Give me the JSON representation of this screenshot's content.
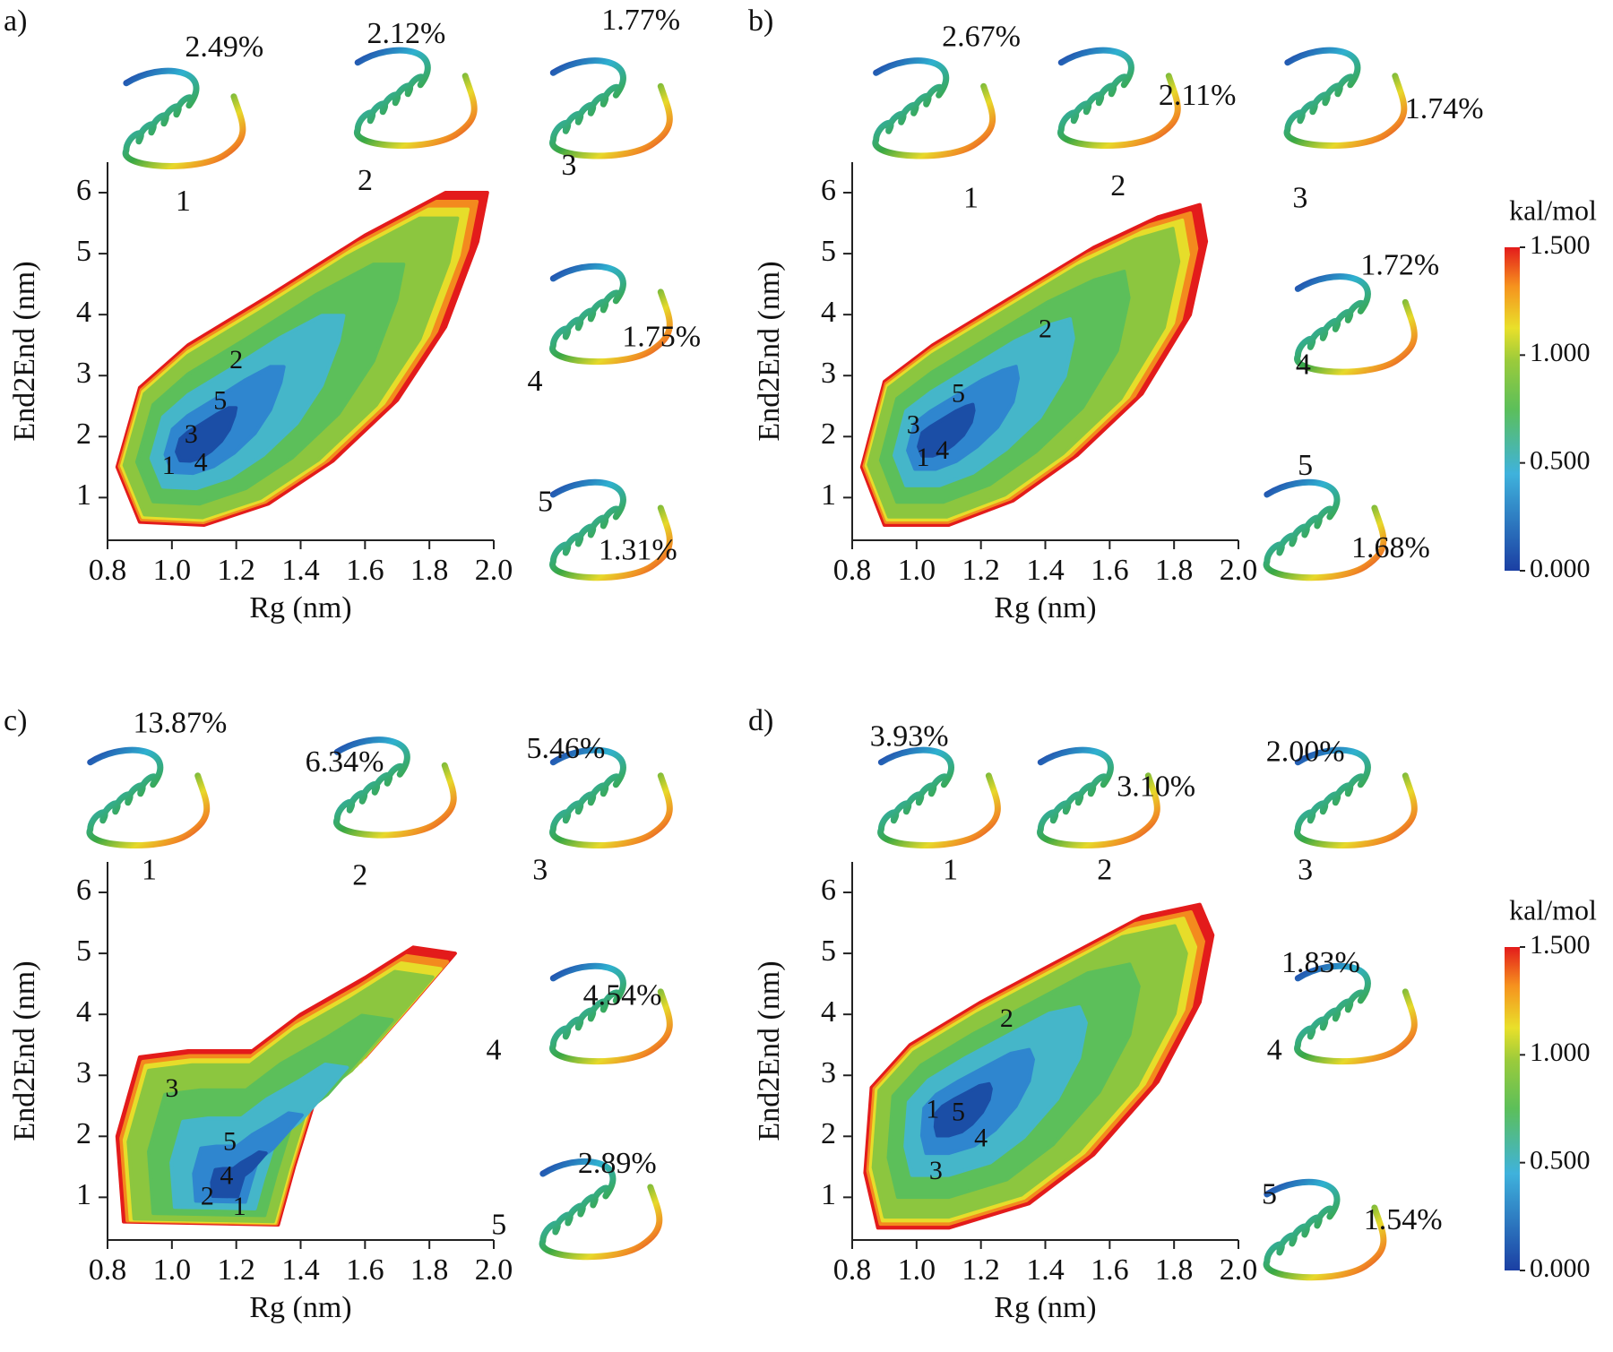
{
  "chart_data": [
    {
      "type": "contour",
      "panel_label": "a)",
      "xlabel": "Rg (nm)",
      "ylabel": "End2End (nm)",
      "xlim": [
        0.8,
        2.0
      ],
      "ylim": [
        0.3,
        6.5
      ],
      "xticks": [
        0.8,
        {
          "value": 1.0,
          "label": "1.0"
        },
        1.2,
        1.4,
        1.6,
        1.8,
        {
          "value": 2.0,
          "label": "2.0"
        }
      ],
      "yticks": [
        1,
        2,
        3,
        4,
        5,
        6
      ],
      "states": [
        {
          "label": "1",
          "x": 0.99,
          "y": 1.49
        },
        {
          "label": "2",
          "x": 1.2,
          "y": 3.22
        },
        {
          "label": "3",
          "x": 1.06,
          "y": 2.0
        },
        {
          "label": "4",
          "x": 1.09,
          "y": 1.54
        },
        {
          "label": "5",
          "x": 1.15,
          "y": 2.55
        }
      ],
      "structures": [
        {
          "label": "1",
          "percent": "2.49%"
        },
        {
          "label": "2",
          "percent": "2.12%"
        },
        {
          "label": "3",
          "percent": "1.77%"
        },
        {
          "label": "4",
          "percent": "1.75%"
        },
        {
          "label": "5",
          "percent": "1.31%"
        }
      ]
    },
    {
      "type": "contour",
      "panel_label": "b)",
      "xlabel": "Rg (nm)",
      "ylabel": "End2End (nm)",
      "xlim": [
        0.8,
        2.0
      ],
      "ylim": [
        0.3,
        6.5
      ],
      "xticks": [
        0.8,
        {
          "value": 1.0,
          "label": "1.0"
        },
        1.2,
        1.4,
        1.6,
        1.8,
        {
          "value": 2.0,
          "label": "2.0"
        }
      ],
      "yticks": [
        1,
        2,
        3,
        4,
        5,
        6
      ],
      "states": [
        {
          "label": "1",
          "x": 1.02,
          "y": 1.62
        },
        {
          "label": "2",
          "x": 1.4,
          "y": 3.73
        },
        {
          "label": "3",
          "x": 0.99,
          "y": 2.16
        },
        {
          "label": "4",
          "x": 1.08,
          "y": 1.74
        },
        {
          "label": "5",
          "x": 1.13,
          "y": 2.67
        }
      ],
      "structures": [
        {
          "label": "1",
          "percent": "2.67%"
        },
        {
          "label": "2",
          "percent": "2.11%"
        },
        {
          "label": "3",
          "percent": "1.74%"
        },
        {
          "label": "4",
          "percent": "1.72%"
        },
        {
          "label": "5",
          "percent": "1.68%"
        }
      ],
      "colorbar": {
        "title": "kal/mol",
        "lim": [
          0,
          1.5
        ],
        "ticks": [
          {
            "value": 0,
            "label": "0.000"
          },
          {
            "value": 0.5,
            "label": "0.500"
          },
          {
            "value": 1,
            "label": "1.000"
          },
          {
            "value": 1.5,
            "label": "1.500"
          }
        ]
      }
    },
    {
      "type": "contour",
      "panel_label": "c)",
      "xlabel": "Rg (nm)",
      "ylabel": "End2End (nm)",
      "xlim": [
        0.8,
        2.0
      ],
      "ylim": [
        0.3,
        6.5
      ],
      "xticks": [
        0.8,
        {
          "value": 1.0,
          "label": "1.0"
        },
        1.2,
        1.4,
        1.6,
        1.8,
        {
          "value": 2.0,
          "label": "2.0"
        }
      ],
      "yticks": [
        1,
        2,
        3,
        4,
        5,
        6
      ],
      "states": [
        {
          "label": "1",
          "x": 1.21,
          "y": 0.81
        },
        {
          "label": "2",
          "x": 1.11,
          "y": 0.98
        },
        {
          "label": "3",
          "x": 1.0,
          "y": 2.75
        },
        {
          "label": "4",
          "x": 1.17,
          "y": 1.32
        },
        {
          "label": "5",
          "x": 1.18,
          "y": 1.88
        }
      ],
      "structures": [
        {
          "label": "1",
          "percent": "13.87%"
        },
        {
          "label": "2",
          "percent": "6.34%"
        },
        {
          "label": "3",
          "percent": "5.46%"
        },
        {
          "label": "4",
          "percent": "4.54%"
        },
        {
          "label": "5",
          "percent": "2.89%"
        }
      ]
    },
    {
      "type": "contour",
      "panel_label": "d)",
      "xlabel": "Rg (nm)",
      "ylabel": "End2End (nm)",
      "xlim": [
        0.8,
        2.0
      ],
      "ylim": [
        0.3,
        6.5
      ],
      "xticks": [
        0.8,
        {
          "value": 1.0,
          "label": "1.0"
        },
        1.2,
        1.4,
        1.6,
        1.8,
        {
          "value": 2.0,
          "label": "2.0"
        }
      ],
      "yticks": [
        1,
        2,
        3,
        4,
        5,
        6
      ],
      "states": [
        {
          "label": "1",
          "x": 1.05,
          "y": 2.41
        },
        {
          "label": "2",
          "x": 1.28,
          "y": 3.9
        },
        {
          "label": "3",
          "x": 1.06,
          "y": 1.4
        },
        {
          "label": "4",
          "x": 1.2,
          "y": 1.94
        },
        {
          "label": "5",
          "x": 1.13,
          "y": 2.36
        }
      ],
      "structures": [
        {
          "label": "1",
          "percent": "3.93%"
        },
        {
          "label": "2",
          "percent": "3.10%"
        },
        {
          "label": "3",
          "percent": "2.00%"
        },
        {
          "label": "4",
          "percent": "1.83%"
        },
        {
          "label": "5",
          "percent": "1.54%"
        }
      ],
      "colorbar": {
        "title": "kal/mol",
        "lim": [
          0,
          1.5
        ],
        "ticks": [
          {
            "value": 0,
            "label": "0.000"
          },
          {
            "value": 0.5,
            "label": "0.500"
          },
          {
            "value": 1,
            "label": "1.000"
          },
          {
            "value": 1.5,
            "label": "1.500"
          }
        ]
      }
    }
  ]
}
